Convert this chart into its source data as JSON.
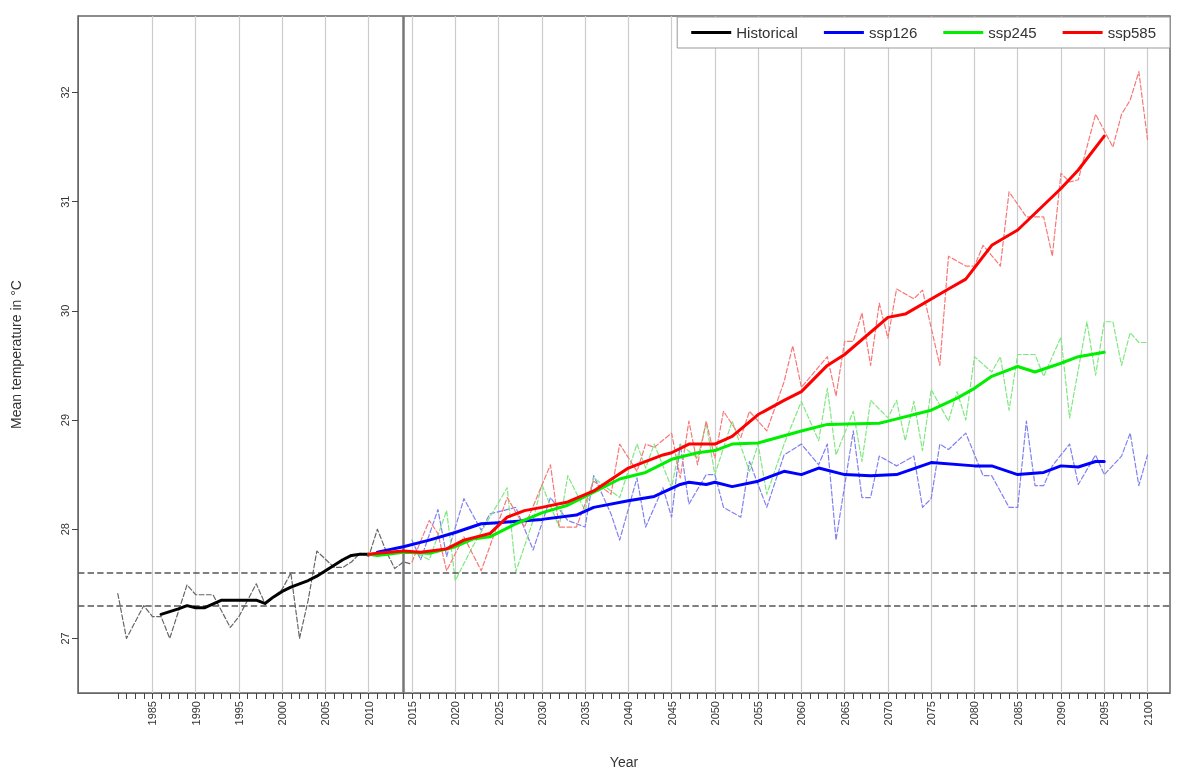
{
  "chart_data": {
    "type": "line",
    "xlabel": "Year",
    "ylabel": "Mean temperature in °C",
    "xlim": [
      1976.4,
      2102.6
    ],
    "ylim": [
      26.5,
      32.7
    ],
    "xticks": [
      {
        "value": 1981,
        "label": null
      },
      {
        "value": 1982,
        "label": null
      },
      {
        "value": 1983,
        "label": null
      },
      {
        "value": 1984,
        "label": null
      },
      1985,
      {
        "value": 1986,
        "label": null
      },
      {
        "value": 1987,
        "label": null
      },
      {
        "value": 1988,
        "label": null
      },
      {
        "value": 1989,
        "label": null
      },
      1990,
      {
        "value": 1991,
        "label": null
      },
      {
        "value": 1992,
        "label": null
      },
      {
        "value": 1993,
        "label": null
      },
      {
        "value": 1994,
        "label": null
      },
      1995,
      {
        "value": 1996,
        "label": null
      },
      {
        "value": 1997,
        "label": null
      },
      {
        "value": 1998,
        "label": null
      },
      {
        "value": 1999,
        "label": null
      },
      2000,
      {
        "value": 2001,
        "label": null
      },
      {
        "value": 2002,
        "label": null
      },
      {
        "value": 2003,
        "label": null
      },
      {
        "value": 2004,
        "label": null
      },
      2005,
      {
        "value": 2006,
        "label": null
      },
      {
        "value": 2007,
        "label": null
      },
      {
        "value": 2008,
        "label": null
      },
      {
        "value": 2009,
        "label": null
      },
      2010,
      {
        "value": 2011,
        "label": null
      },
      {
        "value": 2012,
        "label": null
      },
      {
        "value": 2013,
        "label": null
      },
      {
        "value": 2014,
        "label": null
      },
      2015,
      {
        "value": 2016,
        "label": null
      },
      {
        "value": 2017,
        "label": null
      },
      {
        "value": 2018,
        "label": null
      },
      {
        "value": 2019,
        "label": null
      },
      2020,
      {
        "value": 2021,
        "label": null
      },
      {
        "value": 2022,
        "label": null
      },
      {
        "value": 2023,
        "label": null
      },
      {
        "value": 2024,
        "label": null
      },
      2025,
      {
        "value": 2026,
        "label": null
      },
      {
        "value": 2027,
        "label": null
      },
      {
        "value": 2028,
        "label": null
      },
      {
        "value": 2029,
        "label": null
      },
      2030,
      {
        "value": 2031,
        "label": null
      },
      {
        "value": 2032,
        "label": null
      },
      {
        "value": 2033,
        "label": null
      },
      {
        "value": 2034,
        "label": null
      },
      2035,
      {
        "value": 2036,
        "label": null
      },
      {
        "value": 2037,
        "label": null
      },
      {
        "value": 2038,
        "label": null
      },
      {
        "value": 2039,
        "label": null
      },
      2040,
      {
        "value": 2041,
        "label": null
      },
      {
        "value": 2042,
        "label": null
      },
      {
        "value": 2043,
        "label": null
      },
      {
        "value": 2044,
        "label": null
      },
      2045,
      {
        "value": 2046,
        "label": null
      },
      {
        "value": 2047,
        "label": null
      },
      {
        "value": 2048,
        "label": null
      },
      {
        "value": 2049,
        "label": null
      },
      2050,
      {
        "value": 2051,
        "label": null
      },
      {
        "value": 2052,
        "label": null
      },
      {
        "value": 2053,
        "label": null
      },
      {
        "value": 2054,
        "label": null
      },
      2055,
      {
        "value": 2056,
        "label": null
      },
      {
        "value": 2057,
        "label": null
      },
      {
        "value": 2058,
        "label": null
      },
      {
        "value": 2059,
        "label": null
      },
      2060,
      {
        "value": 2061,
        "label": null
      },
      {
        "value": 2062,
        "label": null
      },
      {
        "value": 2063,
        "label": null
      },
      {
        "value": 2064,
        "label": null
      },
      2065,
      {
        "value": 2066,
        "label": null
      },
      {
        "value": 2067,
        "label": null
      },
      {
        "value": 2068,
        "label": null
      },
      {
        "value": 2069,
        "label": null
      },
      2070,
      {
        "value": 2071,
        "label": null
      },
      {
        "value": 2072,
        "label": null
      },
      {
        "value": 2073,
        "label": null
      },
      {
        "value": 2074,
        "label": null
      },
      2075,
      {
        "value": 2076,
        "label": null
      },
      {
        "value": 2077,
        "label": null
      },
      {
        "value": 2078,
        "label": null
      },
      {
        "value": 2079,
        "label": null
      },
      2080,
      {
        "value": 2081,
        "label": null
      },
      {
        "value": 2082,
        "label": null
      },
      {
        "value": 2083,
        "label": null
      },
      {
        "value": 2084,
        "label": null
      },
      2085,
      {
        "value": 2086,
        "label": null
      },
      {
        "value": 2087,
        "label": null
      },
      {
        "value": 2088,
        "label": null
      },
      {
        "value": 2089,
        "label": null
      },
      2090,
      {
        "value": 2091,
        "label": null
      },
      {
        "value": 2092,
        "label": null
      },
      {
        "value": 2093,
        "label": null
      },
      {
        "value": 2094,
        "label": null
      },
      2095,
      {
        "value": 2096,
        "label": null
      },
      {
        "value": 2097,
        "label": null
      },
      {
        "value": 2098,
        "label": null
      },
      {
        "value": 2099,
        "label": null
      },
      2100
    ],
    "yticks": [
      27,
      28,
      29,
      30,
      31,
      32
    ],
    "grid": "x",
    "legend": "top right",
    "marker": "none",
    "ref_lines": [
      {
        "axis": "x",
        "value": 2014,
        "color": "#777777",
        "line_style": "solid"
      },
      {
        "axis": "y",
        "value": 27.6,
        "color": "#555555",
        "line_style": "dashed"
      },
      {
        "axis": "y",
        "value": 27.3,
        "color": "#555555",
        "line_style": "dashed"
      }
    ],
    "series": [
      {
        "color": "#666666",
        "line_style": "dashed",
        "x": [
          1981,
          1982,
          1984,
          1985,
          1986,
          1987,
          1989,
          1990,
          1992,
          1994,
          1995,
          1997,
          1998,
          1999,
          2000,
          2001,
          2002,
          2003,
          2004,
          2006,
          2007,
          2008,
          2009,
          2010,
          2011,
          2012,
          2013,
          2014,
          2015
        ],
        "values": [
          27.41,
          27.0,
          27.3,
          27.2,
          27.2,
          27.0,
          27.49,
          27.4,
          27.4,
          27.1,
          27.2,
          27.5,
          27.32,
          27.38,
          27.45,
          27.6,
          27.0,
          27.35,
          27.8,
          27.65,
          27.65,
          27.7,
          27.78,
          27.75,
          28.0,
          27.8,
          27.64,
          27.7,
          27.68
        ]
      },
      {
        "color": "#8080f0",
        "line_style": "dashed",
        "x": [
          2015,
          2016,
          2018,
          2019,
          2021,
          2023,
          2024,
          2027,
          2029,
          2031,
          2033,
          2035,
          2036,
          2038,
          2039,
          2041,
          2042,
          2044,
          2045,
          2046,
          2047,
          2049,
          2050,
          2051,
          2053,
          2054,
          2056,
          2058,
          2060,
          2062,
          2063,
          2064,
          2066,
          2067,
          2068,
          2069,
          2071,
          2073,
          2074,
          2075,
          2076,
          2077,
          2079,
          2081,
          2082,
          2084,
          2085,
          2086,
          2087,
          2088,
          2089,
          2091,
          2092,
          2094,
          2095,
          2097,
          2098,
          2099,
          2100
        ],
        "values": [
          27.9,
          27.72,
          28.18,
          27.75,
          28.28,
          27.99,
          28.14,
          28.2,
          27.81,
          28.29,
          28.08,
          28.02,
          28.49,
          28.14,
          27.9,
          28.47,
          28.02,
          28.38,
          28.11,
          28.78,
          28.23,
          28.5,
          28.5,
          28.2,
          28.11,
          28.62,
          28.2,
          28.68,
          28.78,
          28.59,
          28.78,
          27.9,
          28.9,
          28.29,
          28.29,
          28.67,
          28.58,
          28.67,
          28.2,
          28.28,
          28.78,
          28.73,
          28.88,
          28.49,
          28.49,
          28.2,
          28.2,
          28.99,
          28.4,
          28.4,
          28.58,
          28.78,
          28.41,
          28.68,
          28.5,
          28.67,
          28.88,
          28.4,
          28.68
        ]
      },
      {
        "color": "#80e880",
        "line_style": "dashed",
        "x": [
          2015,
          2017,
          2019,
          2020,
          2022,
          2024,
          2026,
          2027,
          2029,
          2030,
          2032,
          2033,
          2035,
          2036,
          2039,
          2041,
          2042,
          2043,
          2045,
          2046,
          2048,
          2049,
          2050,
          2052,
          2054,
          2055,
          2056,
          2058,
          2060,
          2062,
          2063,
          2064,
          2066,
          2067,
          2068,
          2070,
          2071,
          2072,
          2073,
          2074,
          2075,
          2077,
          2078,
          2079,
          2080,
          2082,
          2083,
          2084,
          2085,
          2087,
          2088,
          2090,
          2091,
          2093,
          2094,
          2095,
          2096,
          2097,
          2098,
          2099,
          2100
        ],
        "values": [
          27.8,
          27.72,
          28.17,
          27.53,
          27.84,
          28.11,
          28.38,
          27.61,
          28.08,
          28.41,
          28.02,
          28.49,
          28.17,
          28.47,
          28.29,
          28.78,
          28.56,
          28.78,
          28.38,
          28.78,
          28.65,
          28.97,
          28.5,
          28.99,
          28.53,
          28.78,
          28.32,
          28.78,
          29.17,
          28.81,
          29.29,
          28.68,
          29.08,
          28.62,
          29.18,
          29.02,
          29.18,
          28.81,
          29.17,
          28.72,
          29.28,
          28.99,
          29.26,
          29.0,
          29.58,
          29.44,
          29.58,
          29.09,
          29.6,
          29.6,
          29.4,
          29.76,
          29.02,
          29.9,
          29.41,
          29.9,
          29.9,
          29.5,
          29.8,
          29.71,
          29.71
        ]
      },
      {
        "color": "#f87878",
        "line_style": "dashed",
        "x": [
          2015,
          2017,
          2018,
          2019,
          2021,
          2023,
          2026,
          2028,
          2031,
          2032,
          2034,
          2036,
          2038,
          2039,
          2041,
          2042,
          2043,
          2045,
          2046,
          2047,
          2048,
          2049,
          2050,
          2051,
          2053,
          2054,
          2056,
          2058,
          2059,
          2060,
          2063,
          2064,
          2065,
          2066,
          2067,
          2068,
          2069,
          2070,
          2071,
          2073,
          2074,
          2076,
          2077,
          2079,
          2080,
          2081,
          2083,
          2084,
          2086,
          2088,
          2089,
          2090,
          2091,
          2092,
          2094,
          2096,
          2097,
          2098,
          2099,
          2100
        ],
        "values": [
          27.7,
          28.08,
          27.96,
          27.62,
          27.93,
          27.62,
          28.29,
          28.02,
          28.59,
          28.02,
          28.02,
          28.44,
          28.32,
          28.78,
          28.53,
          28.78,
          28.75,
          28.88,
          28.47,
          28.99,
          28.59,
          28.99,
          28.65,
          29.08,
          28.84,
          29.08,
          28.9,
          29.35,
          29.68,
          29.3,
          29.58,
          29.22,
          29.72,
          29.72,
          29.98,
          29.5,
          30.07,
          29.75,
          30.2,
          30.11,
          30.19,
          29.5,
          30.5,
          30.41,
          30.41,
          30.6,
          30.41,
          31.09,
          30.86,
          30.86,
          30.5,
          31.26,
          31.18,
          31.2,
          31.8,
          31.5,
          31.8,
          31.93,
          32.19,
          31.57
        ]
      },
      {
        "name": "Historical",
        "color": "#000000",
        "line_style": "solid",
        "x": [
          1986,
          1988,
          1989,
          1990,
          1991,
          1993,
          1996,
          1997,
          1998,
          1999,
          2000,
          2001,
          2002,
          2003,
          2004,
          2005,
          2006,
          2007,
          2008,
          2009,
          2010
        ],
        "values": [
          27.22,
          27.27,
          27.3,
          27.28,
          27.28,
          27.35,
          27.35,
          27.35,
          27.32,
          27.38,
          27.43,
          27.47,
          27.5,
          27.53,
          27.57,
          27.62,
          27.67,
          27.72,
          27.76,
          27.77,
          27.77
        ]
      },
      {
        "name": "ssp126",
        "color": "#0000ff",
        "line_style": "solid",
        "x": [
          2011,
          2014,
          2017,
          2020,
          2023,
          2025,
          2030,
          2034,
          2036,
          2040,
          2043,
          2046,
          2047,
          2049,
          2050,
          2052,
          2055,
          2058,
          2060,
          2062,
          2065,
          2068,
          2071,
          2075,
          2080,
          2082,
          2085,
          2088,
          2090,
          2092,
          2094,
          2095
        ],
        "values": [
          27.79,
          27.84,
          27.9,
          27.97,
          28.05,
          28.06,
          28.09,
          28.13,
          28.2,
          28.26,
          28.3,
          28.41,
          28.43,
          28.41,
          28.43,
          28.39,
          28.44,
          28.53,
          28.5,
          28.56,
          28.5,
          28.49,
          28.5,
          28.61,
          28.58,
          28.58,
          28.5,
          28.52,
          28.58,
          28.57,
          28.62,
          28.62
        ]
      },
      {
        "name": "ssp245",
        "color": "#00ee00",
        "line_style": "solid",
        "x": [
          2010,
          2011,
          2014,
          2017,
          2020,
          2022,
          2024,
          2027,
          2030,
          2033,
          2036,
          2039,
          2042,
          2045,
          2048,
          2050,
          2052,
          2055,
          2060,
          2063,
          2069,
          2070,
          2075,
          2078,
          2080,
          2082,
          2085,
          2087,
          2090,
          2092,
          2095
        ],
        "values": [
          27.77,
          27.76,
          27.79,
          27.78,
          27.84,
          27.91,
          27.93,
          28.05,
          28.15,
          28.22,
          28.34,
          28.46,
          28.52,
          28.64,
          28.7,
          28.72,
          28.78,
          28.79,
          28.9,
          28.96,
          28.97,
          28.99,
          29.09,
          29.2,
          29.29,
          29.4,
          29.49,
          29.44,
          29.52,
          29.58,
          29.62
        ]
      },
      {
        "name": "ssp585",
        "color": "#ff0000",
        "line_style": "solid",
        "x": [
          2010,
          2011,
          2014,
          2016,
          2019,
          2021,
          2024,
          2026,
          2028,
          2030,
          2033,
          2036,
          2040,
          2044,
          2045,
          2047,
          2050,
          2052,
          2055,
          2058,
          2060,
          2063,
          2065,
          2070,
          2072,
          2077,
          2079,
          2082,
          2085,
          2090,
          2092,
          2095
        ],
        "values": [
          27.77,
          27.78,
          27.8,
          27.79,
          27.82,
          27.9,
          27.96,
          28.11,
          28.17,
          28.2,
          28.25,
          28.35,
          28.56,
          28.68,
          28.7,
          28.78,
          28.78,
          28.85,
          29.05,
          29.18,
          29.26,
          29.5,
          29.6,
          29.94,
          29.97,
          30.2,
          30.29,
          30.6,
          30.74,
          31.12,
          31.29,
          31.6
        ]
      }
    ]
  }
}
